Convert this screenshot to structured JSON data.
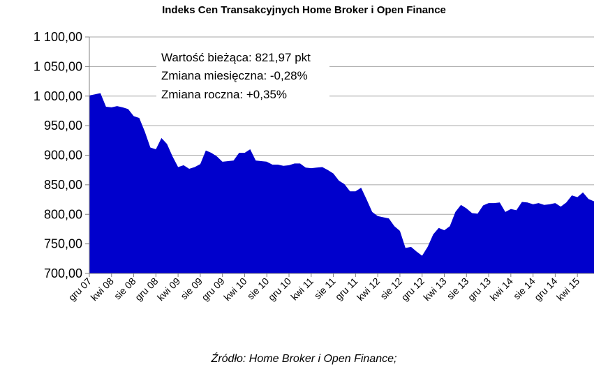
{
  "chart_data": {
    "type": "area",
    "title": "Indeks Cen Transakcyjnych Home Broker i Open Finance",
    "source": "Źródło: Home Broker i Open Finance;",
    "annotations": [
      "Wartość bieżąca: 821,97 pkt",
      "Zmiana miesięczna: -0,28%",
      "Zmiana roczna: +0,35%"
    ],
    "ylim": [
      700,
      1100
    ],
    "yticks": [
      700,
      750,
      800,
      850,
      900,
      950,
      1000,
      1050,
      1100
    ],
    "ytick_labels": [
      "700,00",
      "750,00",
      "800,00",
      "850,00",
      "900,00",
      "950,00",
      "1 000,00",
      "1 050,00",
      "1 100,00"
    ],
    "grid": true,
    "xtick_labels": [
      "gru 07",
      "kwi 08",
      "sie 08",
      "gru 08",
      "kwi 09",
      "sie 09",
      "gru 09",
      "kwi 10",
      "sie 10",
      "gru 10",
      "kwi 11",
      "sie 11",
      "gru 11",
      "kwi 12",
      "sie 12",
      "gru 12",
      "kwi 13",
      "sie 13",
      "gru 13",
      "kwi 14",
      "sie 14",
      "gru 14",
      "kwi 15"
    ],
    "area_color": "#0000CC",
    "series": [
      {
        "values": [
          1001,
          1003,
          1005,
          982,
          981,
          983,
          981,
          978,
          966,
          963,
          940,
          913,
          910,
          929,
          919,
          898,
          880,
          883,
          877,
          880,
          885,
          908,
          904,
          898,
          889,
          890,
          891,
          904,
          904,
          910,
          891,
          890,
          889,
          884,
          884,
          882,
          883,
          886,
          886,
          879,
          878,
          879,
          880,
          875,
          869,
          857,
          851,
          839,
          839,
          845,
          825,
          804,
          797,
          795,
          793,
          780,
          772,
          743,
          745,
          737,
          730,
          745,
          766,
          777,
          773,
          780,
          804,
          816,
          810,
          802,
          801,
          815,
          819,
          819,
          820,
          804,
          809,
          807,
          821,
          820,
          817,
          819,
          816,
          817,
          819,
          813,
          820,
          832,
          829,
          837,
          826,
          822
        ]
      }
    ]
  }
}
